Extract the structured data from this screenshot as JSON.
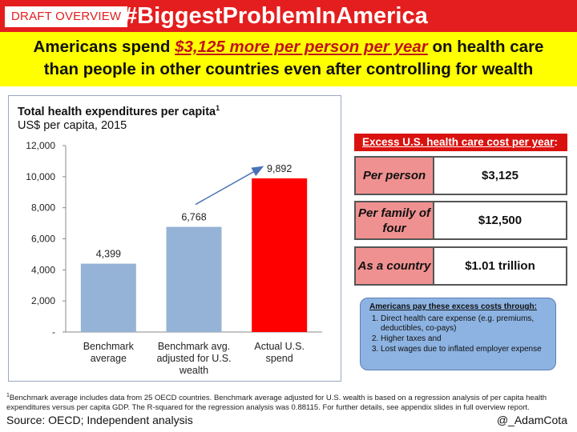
{
  "header": {
    "draft_label": "DRAFT OVERVIEW",
    "hashtag": "#BiggestProblemInAmerica"
  },
  "headline": {
    "part1": "Americans spend ",
    "emphasis": "$3,125 more per person per year",
    "part2": " on health care",
    "line2": "than people in other countries even after controlling for wealth"
  },
  "chart_data": {
    "type": "bar",
    "title": "Total health expenditures per capita",
    "title_footnote_marker": "1",
    "subtitle": "US$ per capita, 2015",
    "categories": [
      "Benchmark average",
      "Benchmark avg. adjusted for U.S. wealth",
      "Actual U.S. spend"
    ],
    "values": [
      4399,
      6768,
      9892
    ],
    "value_labels": [
      "4,399",
      "6,768",
      "9,892"
    ],
    "bar_colors": [
      "#95b3d7",
      "#95b3d7",
      "#ff0000"
    ],
    "ylim": [
      0,
      12000
    ],
    "yticks": [
      0,
      2000,
      4000,
      6000,
      8000,
      10000,
      12000
    ],
    "ytick_labels": [
      "-",
      "2,000",
      "4,000",
      "6,000",
      "8,000",
      "10,000",
      "12,000"
    ],
    "annotation": "arrow from benchmark adjusted bar to actual U.S. spend bar",
    "xlabel": "",
    "ylabel": ""
  },
  "excess": {
    "heading": "Excess U.S. health care cost per year",
    "heading_suffix": ":",
    "rows": [
      {
        "label": "Per person",
        "value": "$3,125"
      },
      {
        "label": "Per family of four",
        "value": "$12,500"
      },
      {
        "label": "As a country",
        "value": "$1.01 trillion"
      }
    ]
  },
  "callout": {
    "heading": "Americans pay these excess costs through:",
    "items": [
      "Direct health care expense (e.g. premiums, deductibles, co-pays)",
      "Higher taxes and",
      "Lost wages due to inflated employer expense"
    ]
  },
  "footnote": {
    "marker": "1",
    "text": "Benchmark average includes data from 25 OECD countries. Benchmark average adjusted for U.S. wealth is based on a regression analysis of per capita health expenditures versus per capita GDP. The R-squared for the regression analysis was 0.88115. For further details, see appendix slides in full overview report."
  },
  "source": "Source: OECD; Independent analysis",
  "handle": "@_AdamCota",
  "colors": {
    "brand_red": "#e41e1e",
    "headline_yellow": "#ffff00",
    "bar_blue": "#95b3d7",
    "bar_red": "#ff0000",
    "label_pink": "#f09191",
    "callout_blue": "#8db3e2"
  }
}
